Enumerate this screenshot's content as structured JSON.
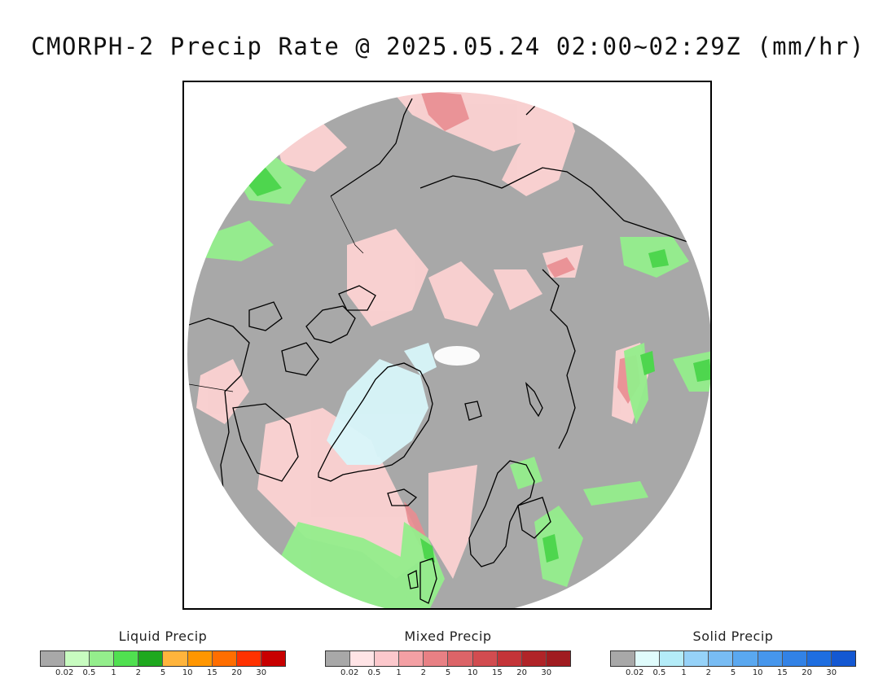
{
  "title": "CMORPH-2 Precip Rate @ 2025.05.24 02:00~02:29Z (mm/hr)",
  "map": {
    "projection": "north-polar-stereographic",
    "background_color": "#a8a8a8",
    "coastline_color": "#000000"
  },
  "legends": [
    {
      "id": "liquid",
      "title": "Liquid Precip",
      "colors": [
        "#a8a8a8",
        "#c8fcc0",
        "#94ee8c",
        "#50e050",
        "#1ea81e",
        "#ffb43c",
        "#ff9600",
        "#ff6e00",
        "#ff3200",
        "#c80000"
      ],
      "tick_labels": [
        "0.02",
        "0.5",
        "1",
        "2",
        "5",
        "10",
        "15",
        "20",
        "30"
      ]
    },
    {
      "id": "mixed",
      "title": "Mixed Precip",
      "colors": [
        "#a8a8a8",
        "#ffe4e6",
        "#fcc8cc",
        "#f4a0a4",
        "#e88084",
        "#dc6468",
        "#d24c50",
        "#c43438",
        "#b02428",
        "#a01c20"
      ],
      "tick_labels": [
        "0.02",
        "0.5",
        "1",
        "2",
        "5",
        "10",
        "15",
        "20",
        "30"
      ]
    },
    {
      "id": "solid",
      "title": "Solid Precip",
      "colors": [
        "#a8a8a8",
        "#e0fcfc",
        "#b4ecf8",
        "#96d2f8",
        "#78bcf4",
        "#5aa8f0",
        "#4696ec",
        "#3282e6",
        "#1e6ee0",
        "#1458d2"
      ],
      "tick_labels": [
        "0.02",
        "0.5",
        "1",
        "2",
        "5",
        "10",
        "15",
        "20",
        "30"
      ]
    }
  ]
}
